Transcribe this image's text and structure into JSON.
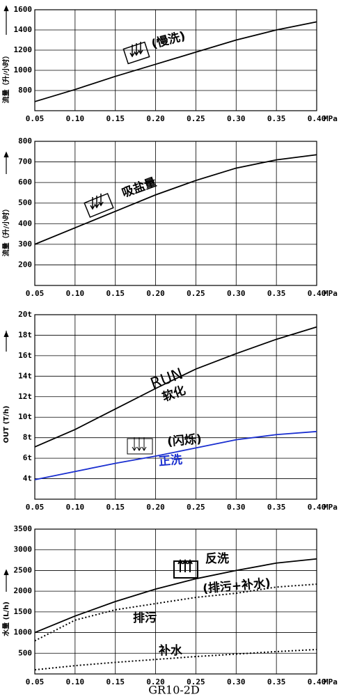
{
  "chart_data": [
    {
      "type": "line",
      "ylabel": "流量（升/小时）",
      "xunit": "MPa",
      "x": [
        0.05,
        0.1,
        0.15,
        0.2,
        0.25,
        0.3,
        0.35,
        0.4
      ],
      "xlim": [
        0.05,
        0.4
      ],
      "xticks": [
        0.05,
        {
          "value": 0.1,
          "label": "0.10"
        },
        0.15,
        {
          "value": 0.2,
          "label": "0.20"
        },
        0.25,
        {
          "value": 0.3,
          "label": "0.30"
        },
        0.35,
        {
          "value": 0.4,
          "label": "0.40"
        }
      ],
      "ylim": [
        600,
        1600
      ],
      "yticks": [
        800,
        1000,
        1200,
        1400,
        1600
      ],
      "annotations": [
        "(慢洗)"
      ],
      "series": [
        {
          "color": "#000000",
          "values": [
            690,
            810,
            940,
            1060,
            1180,
            1300,
            1400,
            1480
          ]
        }
      ]
    },
    {
      "type": "line",
      "ylabel": "流量（升/小时）",
      "xunit": "MPa",
      "x": [
        0.05,
        0.1,
        0.15,
        0.2,
        0.25,
        0.3,
        0.35,
        0.4
      ],
      "xlim": [
        0.05,
        0.4
      ],
      "xticks": [
        0.05,
        {
          "value": 0.1,
          "label": "0.10"
        },
        0.15,
        {
          "value": 0.2,
          "label": "0.20"
        },
        0.25,
        {
          "value": 0.3,
          "label": "0.30"
        },
        0.35,
        {
          "value": 0.4,
          "label": "0.40"
        }
      ],
      "ylim": [
        100,
        800
      ],
      "yticks": [
        200,
        300,
        400,
        500,
        600,
        700,
        800
      ],
      "annotations": [
        "吸盐量"
      ],
      "series": [
        {
          "color": "#000000",
          "values": [
            300,
            380,
            460,
            540,
            610,
            670,
            710,
            735
          ]
        }
      ]
    },
    {
      "type": "line",
      "ylabel": "OUT (T/h)",
      "xunit": "MPa",
      "x": [
        0.05,
        0.1,
        0.15,
        0.2,
        0.25,
        0.3,
        0.35,
        0.4
      ],
      "xlim": [
        0.05,
        0.4
      ],
      "xticks": [
        0.05,
        {
          "value": 0.1,
          "label": "0.10"
        },
        0.15,
        {
          "value": 0.2,
          "label": "0.20"
        },
        0.25,
        {
          "value": 0.3,
          "label": "0.30"
        },
        0.35,
        {
          "value": 0.4,
          "label": "0.40"
        }
      ],
      "ylim": [
        2,
        20
      ],
      "yticks": [
        {
          "value": 4,
          "label": "4t"
        },
        {
          "value": 6,
          "label": "6t"
        },
        {
          "value": 8,
          "label": "8t"
        },
        {
          "value": 10,
          "label": "10t"
        },
        {
          "value": 12,
          "label": "12t"
        },
        {
          "value": 14,
          "label": "14t"
        },
        {
          "value": 16,
          "label": "16t"
        },
        {
          "value": 18,
          "label": "18t"
        },
        {
          "value": 20,
          "label": "20t"
        }
      ],
      "annotations": [
        "RUN",
        "(闪烁)"
      ],
      "series": [
        {
          "name": "软化",
          "color": "#000000",
          "values": [
            7.1,
            8.8,
            10.8,
            12.8,
            14.7,
            16.2,
            17.6,
            18.8
          ]
        },
        {
          "name": "正洗",
          "color": "#1a2fd0",
          "values": [
            3.9,
            4.7,
            5.5,
            6.2,
            7.0,
            7.8,
            8.3,
            8.6
          ]
        }
      ]
    },
    {
      "type": "line",
      "ylabel": "水量 (L/h)",
      "xunit": "MPa",
      "x": [
        0.05,
        0.1,
        0.15,
        0.2,
        0.25,
        0.3,
        0.35,
        0.4
      ],
      "xlim": [
        0.05,
        0.4
      ],
      "xticks": [
        0.05,
        {
          "value": 0.1,
          "label": "0.10"
        },
        0.15,
        {
          "value": 0.2,
          "label": "0.20"
        },
        0.25,
        {
          "value": 0.3,
          "label": "0.30"
        },
        0.35,
        {
          "value": 0.4,
          "label": "0.40"
        }
      ],
      "ylim": [
        0,
        3500
      ],
      "yticks": [
        500,
        1000,
        1500,
        2000,
        2500,
        3000,
        3500
      ],
      "annotations": [
        "(排污+补水)"
      ],
      "series": [
        {
          "name": "反洗",
          "color": "#000000",
          "values": [
            1000,
            1400,
            1750,
            2050,
            2300,
            2500,
            2680,
            2780
          ]
        },
        {
          "name": "排污",
          "color": "#000000",
          "dotted": true,
          "values": [
            800,
            1300,
            1550,
            1700,
            1850,
            1950,
            2100,
            2170
          ]
        },
        {
          "name": "补水",
          "color": "#000000",
          "dotted": true,
          "values": [
            100,
            200,
            280,
            350,
            420,
            480,
            540,
            590
          ]
        }
      ]
    }
  ],
  "footer": "GR10-2D"
}
